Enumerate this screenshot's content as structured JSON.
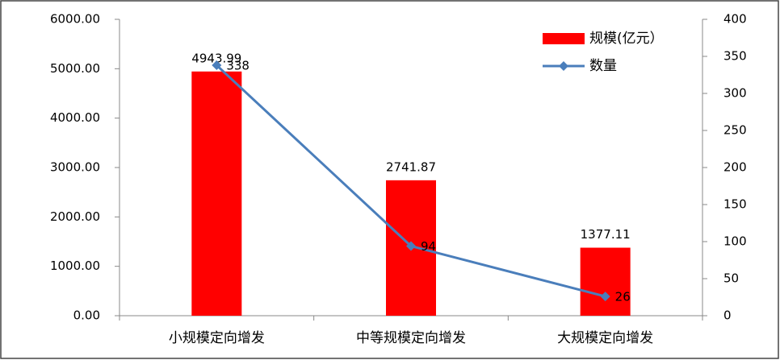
{
  "chart_data": {
    "type": "bar",
    "categories": [
      "小规模定向增发",
      "中等规模定向增发",
      "大规模定向增发"
    ],
    "series": [
      {
        "name": "规模(亿元）",
        "type": "bar",
        "color": "#ff0000",
        "axis": "y",
        "values": [
          4943.99,
          2741.87,
          1377.11
        ]
      },
      {
        "name": "数量",
        "type": "line",
        "color": "#4a7ebb",
        "axis": "y2",
        "values": [
          338,
          94,
          26
        ]
      }
    ],
    "ylim": [
      0,
      6000
    ],
    "yticks": [
      {
        "value": 0,
        "label": "0.00"
      },
      {
        "value": 1000,
        "label": "1000.00"
      },
      {
        "value": 2000,
        "label": "2000.00"
      },
      {
        "value": 3000,
        "label": "3000.00"
      },
      {
        "value": 4000,
        "label": "4000.00"
      },
      {
        "value": 5000,
        "label": "5000.00"
      },
      {
        "value": 6000,
        "label": "6000.00"
      }
    ],
    "y2lim": [
      0,
      400
    ],
    "y2ticks": [
      0,
      50,
      100,
      150,
      200,
      250,
      300,
      350,
      400
    ],
    "grid": false,
    "legend": "upper-right"
  }
}
